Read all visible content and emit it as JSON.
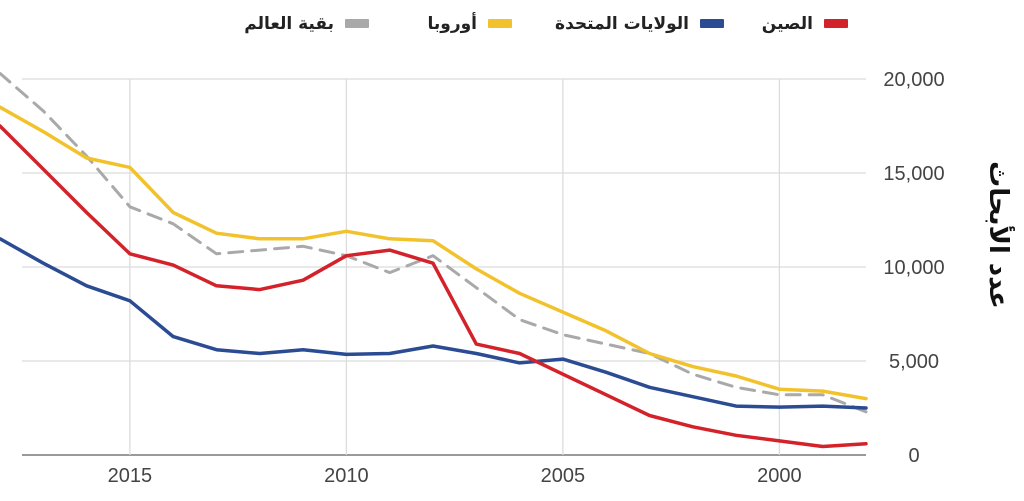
{
  "chart_data": {
    "type": "line",
    "ylabel": "عدد الأبحاث",
    "x_reversed": true,
    "xlim": [
      1998,
      2018
    ],
    "ylim": [
      0,
      20000
    ],
    "x_ticks": [
      {
        "value": 2000,
        "label": "2000"
      },
      {
        "value": 2005,
        "label": "2005"
      },
      {
        "value": 2010,
        "label": "2010"
      },
      {
        "value": 2015,
        "label": "2015"
      }
    ],
    "y_ticks": [
      {
        "value": 0,
        "label": "0"
      },
      {
        "value": 5000,
        "label": "5,000"
      },
      {
        "value": 10000,
        "label": "10,000"
      },
      {
        "value": 15000,
        "label": "15,000"
      },
      {
        "value": 20000,
        "label": "20,000"
      }
    ],
    "grid": true,
    "legend_position": "top",
    "x": [
      1998,
      1999,
      2000,
      2001,
      2002,
      2003,
      2004,
      2005,
      2006,
      2007,
      2008,
      2009,
      2010,
      2011,
      2012,
      2013,
      2014,
      2015,
      2016,
      2017,
      2018
    ],
    "series": [
      {
        "name": "الصين",
        "color": "#d3222a",
        "dash": false,
        "values": [
          600,
          450,
          750,
          1050,
          1500,
          2100,
          3200,
          4300,
          5400,
          5900,
          10200,
          10900,
          10600,
          9300,
          8800,
          9000,
          10100,
          10700,
          12900,
          15200,
          17500
        ]
      },
      {
        "name": "الولايات المتحدة",
        "color": "#2b4b93",
        "dash": false,
        "values": [
          2500,
          2600,
          2550,
          2600,
          3100,
          3600,
          4400,
          5100,
          4900,
          5400,
          5800,
          5400,
          5350,
          5600,
          5400,
          5600,
          6300,
          8200,
          9000,
          10200,
          11500
        ]
      },
      {
        "name": "أوروبا",
        "color": "#f2c22d",
        "dash": false,
        "values": [
          3000,
          3400,
          3500,
          4200,
          4700,
          5400,
          6600,
          7600,
          8600,
          9900,
          11400,
          11500,
          11900,
          11500,
          11500,
          11800,
          12900,
          15300,
          15800,
          17200,
          18500
        ]
      },
      {
        "name": "بقية العالم",
        "color": "#a9a9a9",
        "dash": true,
        "values": [
          2300,
          3200,
          3200,
          3600,
          4300,
          5400,
          5900,
          6400,
          7200,
          8900,
          10600,
          9700,
          10600,
          11100,
          10900,
          10700,
          12300,
          13200,
          15900,
          18300,
          20300
        ]
      }
    ]
  }
}
